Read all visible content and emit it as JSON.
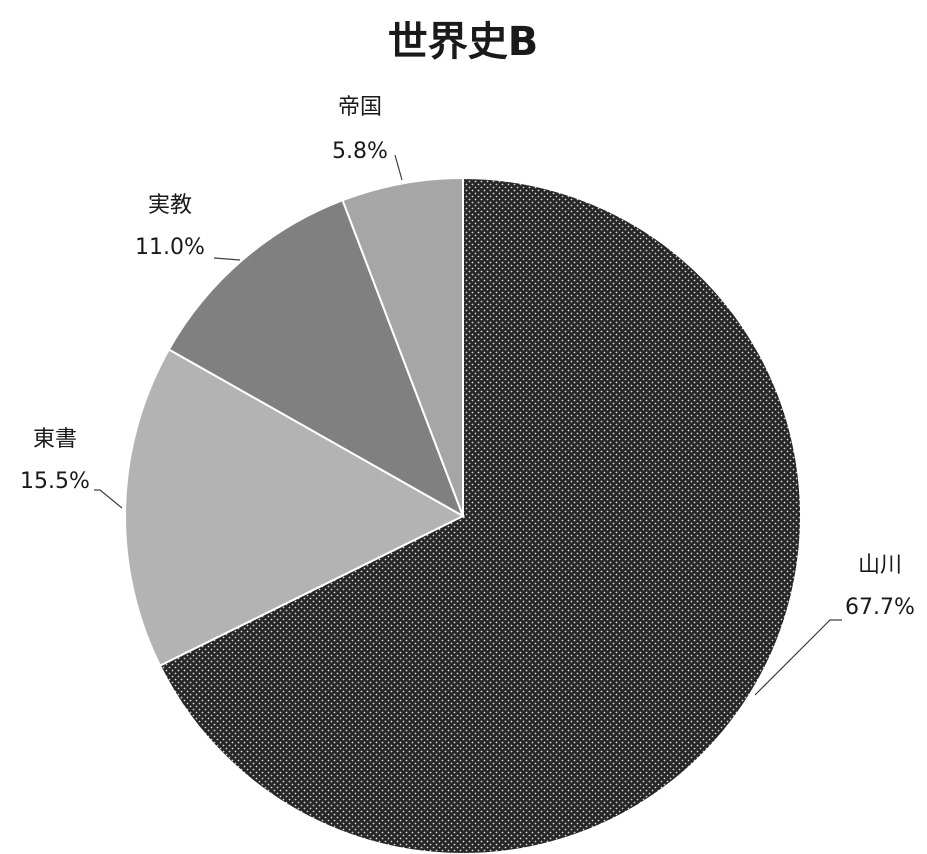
{
  "chart_data": {
    "type": "pie",
    "title": "世界史B",
    "categories": [
      "山川",
      "東書",
      "実教",
      "帝国"
    ],
    "values": [
      67.7,
      15.5,
      11.0,
      5.8
    ],
    "value_labels": [
      "67.7%",
      "15.5%",
      "11.0%",
      "5.8%"
    ],
    "colors": [
      "#262626",
      "#b3b3b3",
      "#808080",
      "#a6a6a6"
    ]
  }
}
